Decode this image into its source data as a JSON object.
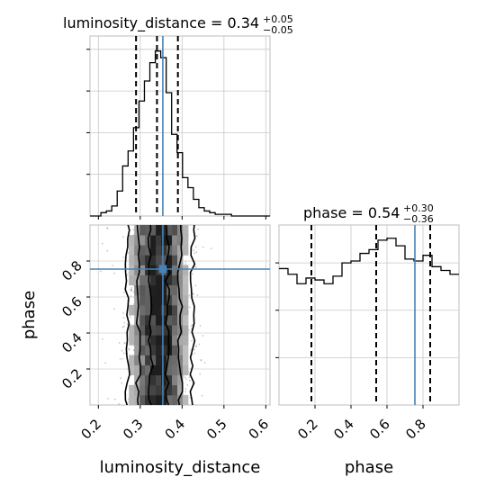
{
  "chart_data": [
    {
      "type": "histogram",
      "panel": "luminosity_distance marginal",
      "title": {
        "label": "luminosity_distance = 0.34",
        "sup": "+0.05",
        "sub": "−0.05"
      },
      "xlim": [
        0.18,
        0.61
      ],
      "x_ticks": [
        0.2,
        0.3,
        0.4,
        0.5,
        0.6
      ],
      "y_ticks_unlabeled": [
        0.25,
        0.5,
        0.75,
        1.0
      ],
      "grid": true,
      "bin_edges": [
        0.18,
        0.193,
        0.206,
        0.219,
        0.232,
        0.245,
        0.258,
        0.271,
        0.284,
        0.297,
        0.31,
        0.323,
        0.336,
        0.349,
        0.362,
        0.375,
        0.388,
        0.401,
        0.414,
        0.427,
        0.44,
        0.453,
        0.466,
        0.479,
        0.492,
        0.505,
        0.518,
        0.531,
        0.544,
        0.557,
        0.57,
        0.583,
        0.596,
        0.61
      ],
      "counts": [
        0.0,
        0.0,
        0.02,
        0.03,
        0.06,
        0.15,
        0.3,
        0.39,
        0.53,
        0.69,
        0.81,
        0.92,
        0.99,
        0.95,
        0.74,
        0.49,
        0.38,
        0.23,
        0.17,
        0.1,
        0.05,
        0.03,
        0.02,
        0.01,
        0.01,
        0.01,
        0.0,
        0.0,
        0.0,
        0.0,
        0.0,
        0.0,
        0.0
      ],
      "quantile_lines": [
        0.29,
        0.34,
        0.39
      ],
      "truth_value": 0.354,
      "colors": {
        "hist": "#000000",
        "truth": "#4682b4"
      }
    },
    {
      "type": "histogram",
      "panel": "phase marginal",
      "title": {
        "label": "phase = 0.54",
        "sup": "+0.30",
        "sub": "−0.36"
      },
      "xlim": [
        0.0,
        1.0
      ],
      "x_ticks": [
        0.2,
        0.4,
        0.6,
        0.8
      ],
      "xlabel": "phase",
      "y_ticks_unlabeled": [
        0.25,
        0.5,
        0.75
      ],
      "grid": true,
      "bin_edges": [
        0.0,
        0.05,
        0.1,
        0.15,
        0.2,
        0.25,
        0.3,
        0.35,
        0.4,
        0.45,
        0.5,
        0.55,
        0.6,
        0.65,
        0.7,
        0.75,
        0.8,
        0.85,
        0.9,
        0.95,
        1.0
      ],
      "counts": [
        0.72,
        0.69,
        0.64,
        0.67,
        0.66,
        0.64,
        0.68,
        0.75,
        0.76,
        0.8,
        0.82,
        0.87,
        0.88,
        0.84,
        0.77,
        0.76,
        0.79,
        0.73,
        0.71,
        0.69
      ],
      "quantile_lines": [
        0.18,
        0.54,
        0.84
      ],
      "truth_value": 0.755,
      "colors": {
        "hist": "#000000",
        "truth": "#4682b4"
      }
    },
    {
      "type": "scatter",
      "panel": "2D density luminosity_distance vs phase",
      "xlabel": "luminosity_distance",
      "ylabel": "phase",
      "xlim": [
        0.18,
        0.61
      ],
      "ylim": [
        0.0,
        1.0
      ],
      "x_ticks": [
        0.2,
        0.3,
        0.4,
        0.5,
        0.6
      ],
      "y_ticks": [
        0.2,
        0.4,
        0.6,
        0.8
      ],
      "grid": true,
      "density_center_x": 0.345,
      "density_width_x": 0.04,
      "contour_columns_x": [
        0.27,
        0.295,
        0.325,
        0.365,
        0.395,
        0.425
      ],
      "truth_point": {
        "x": 0.354,
        "y": 0.755
      },
      "colors": {
        "scatter": "#9a9a9a",
        "contour": "#000000",
        "truth": "#4682b4"
      }
    }
  ]
}
